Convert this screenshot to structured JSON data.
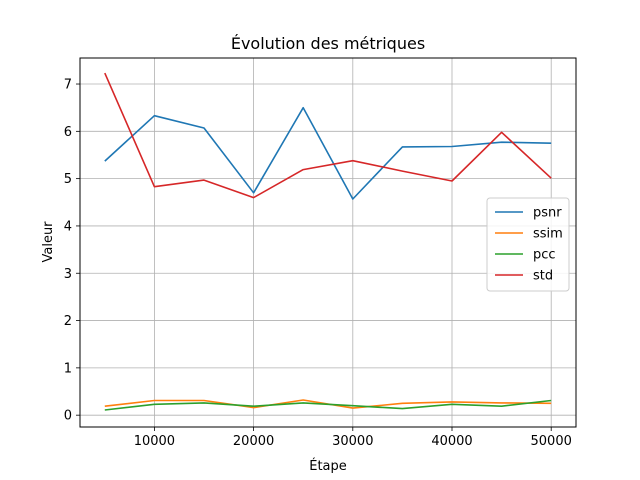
{
  "chart_data": {
    "type": "line",
    "title": "Évolution des métriques",
    "xlabel": "Étape",
    "ylabel": "Valeur",
    "x": [
      5000,
      10000,
      15000,
      20000,
      25000,
      30000,
      35000,
      40000,
      45000,
      50000
    ],
    "xlim": [
      2500,
      52500
    ],
    "ylim": [
      -0.25,
      7.55
    ],
    "xticks": [
      10000,
      20000,
      30000,
      40000,
      50000
    ],
    "yticks": [
      0,
      1,
      2,
      3,
      4,
      5,
      6,
      7
    ],
    "grid": true,
    "legend_position": "center-right",
    "series": [
      {
        "name": "psnr",
        "color": "#1f77b4",
        "values": [
          5.37,
          6.33,
          6.07,
          4.7,
          6.5,
          4.57,
          5.67,
          5.68,
          5.77,
          5.75
        ]
      },
      {
        "name": "ssim",
        "color": "#ff7f0e",
        "values": [
          0.19,
          0.31,
          0.31,
          0.16,
          0.32,
          0.15,
          0.25,
          0.28,
          0.26,
          0.25
        ]
      },
      {
        "name": "pcc",
        "color": "#2ca02c",
        "values": [
          0.11,
          0.23,
          0.26,
          0.19,
          0.26,
          0.2,
          0.14,
          0.23,
          0.19,
          0.31
        ]
      },
      {
        "name": "std",
        "color": "#d62728",
        "values": [
          7.23,
          4.83,
          4.97,
          4.6,
          5.19,
          5.38,
          5.16,
          4.95,
          5.98,
          5.01
        ]
      }
    ]
  }
}
